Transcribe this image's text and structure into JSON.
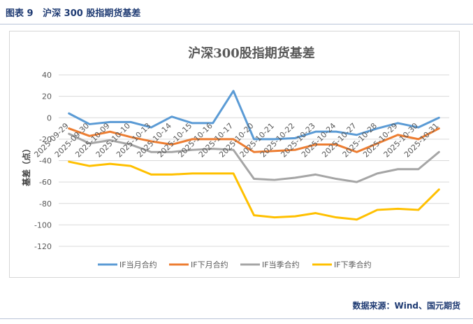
{
  "caption": "图表 9   沪深 300 股指期货基差",
  "source": "数据来源：Wind、国元期货",
  "colors": {
    "s1": "#5b9bd5",
    "s2": "#ed7d31",
    "s3": "#a5a5a5",
    "s4": "#ffc000",
    "grid": "#d9d9d9",
    "text": "#595959"
  },
  "chart_data": {
    "type": "line",
    "title": "沪深300股指期货基差",
    "xlabel": "",
    "ylabel": "基差（点）",
    "ylim": [
      -120,
      40
    ],
    "yticks": [
      40,
      20,
      0,
      -20,
      -40,
      -60,
      -80,
      -100,
      -120
    ],
    "grid": true,
    "legend": "bottom",
    "categories": [
      "2025-09-29",
      "2025-09-30",
      "2025-10-09",
      "2025-10-10",
      "2025-10-13",
      "2025-10-14",
      "2025-10-15",
      "2025-10-16",
      "2025-10-17",
      "2025-10-20",
      "2025-10-21",
      "2025-10-22",
      "2025-10-23",
      "2025-10-24",
      "2025-10-27",
      "2025-10-28",
      "2025-10-29",
      "2025-10-30",
      "2025-10-31"
    ],
    "series": [
      {
        "name": "IF当月合约",
        "color": "#5b9bd5",
        "values": [
          4,
          -6,
          -4,
          -4,
          -9,
          1,
          -5,
          -5,
          25,
          -20,
          -20,
          -19,
          -13,
          -13,
          -16,
          -10,
          -5,
          -9,
          0
        ]
      },
      {
        "name": "IF下月合约",
        "color": "#ed7d31",
        "values": [
          -10,
          -17,
          -13,
          -18,
          -22,
          -25,
          -20,
          -20,
          -20,
          -32,
          -31,
          -30,
          -25,
          -25,
          -32,
          -24,
          -16,
          -20,
          -10
        ]
      },
      {
        "name": "IF当季合约",
        "color": "#a5a5a5",
        "values": [
          -15,
          -24,
          -21,
          -25,
          -32,
          -32,
          -30,
          -29,
          -30,
          -57,
          -58,
          -56,
          -53,
          -57,
          -60,
          -52,
          -48,
          -48,
          -32
        ]
      },
      {
        "name": "IF下季合约",
        "color": "#ffc000",
        "values": [
          -41,
          -45,
          -43,
          -45,
          -53,
          -53,
          -52,
          -52,
          -52,
          -91,
          -93,
          -92,
          -89,
          -93,
          -95,
          -86,
          -85,
          -86,
          -67
        ]
      }
    ]
  }
}
